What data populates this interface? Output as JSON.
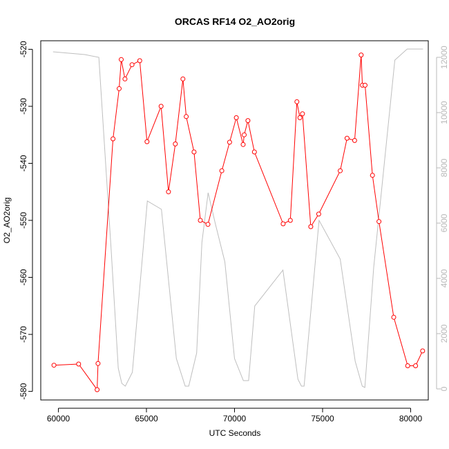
{
  "chart_data": {
    "type": "line",
    "title": "ORCAS RF14 O2_AO2orig",
    "xlabel": "UTC Seconds",
    "ylabel": "O2_AO2orig",
    "xlim": [
      59000,
      81000
    ],
    "ylim": [
      -581.5,
      -518.5
    ],
    "y2lim": [
      -400,
      12600
    ],
    "x_ticks": [
      60000,
      65000,
      70000,
      75000,
      80000
    ],
    "x_tick_labels": [
      "60000",
      "65000",
      "70000",
      "75000",
      "80000"
    ],
    "y_ticks": [
      -520,
      -530,
      -540,
      -550,
      -560,
      -570,
      -580
    ],
    "y_tick_labels": [
      "-520",
      "-530",
      "-540",
      "-550",
      "-560",
      "-570",
      "-580"
    ],
    "y2_ticks": [
      0,
      2000,
      4000,
      6000,
      8000,
      10000,
      12000
    ],
    "y2_tick_labels": [
      "0",
      "2000",
      "4000",
      "6000",
      "8000",
      "10000",
      "12000"
    ],
    "colors": {
      "o2": "#ff0000",
      "altitude": "#bebebe",
      "axis": "#000000",
      "secondary_axis": "#b8b8b8"
    },
    "series": [
      {
        "axis": "left",
        "style": "line+points",
        "color": "#ff0000",
        "x": [
          59750,
          61150,
          62200,
          62250,
          63100,
          63450,
          63570,
          63780,
          64180,
          64620,
          65030,
          65830,
          66250,
          66640,
          67070,
          67260,
          67700,
          68060,
          68490,
          69280,
          69720,
          70100,
          70490,
          70550,
          70760,
          71130,
          72760,
          73170,
          73540,
          73710,
          73860,
          74330,
          74780,
          76000,
          76390,
          76820,
          77190,
          77260,
          77410,
          77830,
          78200,
          79040,
          79830,
          80280,
          80680
        ],
        "y": [
          -575.4,
          -575.2,
          -579.7,
          -575.1,
          -535.7,
          -526.9,
          -521.8,
          -525.2,
          -522.7,
          -522.0,
          -536.2,
          -530.0,
          -545.0,
          -536.6,
          -525.2,
          -531.8,
          -538.0,
          -550.0,
          -550.7,
          -541.3,
          -536.3,
          -532.0,
          -536.7,
          -535.0,
          -532.5,
          -538.0,
          -550.6,
          -550.0,
          -529.2,
          -532.0,
          -531.3,
          -551.1,
          -548.9,
          -541.3,
          -535.6,
          -536.0,
          -521.0,
          -526.3,
          -526.3,
          -542.1,
          -550.2,
          -567.0,
          -575.5,
          -575.5,
          -572.9
        ]
      },
      {
        "axis": "right",
        "style": "line",
        "color": "#bebebe",
        "x": [
          59700,
          61500,
          62300,
          63000,
          63400,
          63600,
          63800,
          64200,
          65050,
          65850,
          66700,
          67200,
          67400,
          67850,
          68150,
          68500,
          68900,
          69450,
          70000,
          70500,
          70800,
          71150,
          72750,
          73600,
          73800,
          73950,
          74800,
          76000,
          76850,
          77250,
          77400,
          77900,
          79100,
          79800,
          80700
        ],
        "y": [
          12200,
          12100,
          12000,
          5000,
          750,
          200,
          100,
          600,
          6800,
          6500,
          1100,
          100,
          100,
          1300,
          5300,
          7100,
          6000,
          4600,
          1100,
          300,
          300,
          3000,
          4300,
          350,
          100,
          100,
          6100,
          4700,
          1000,
          100,
          50,
          4400,
          11900,
          12300,
          12300
        ]
      }
    ]
  }
}
